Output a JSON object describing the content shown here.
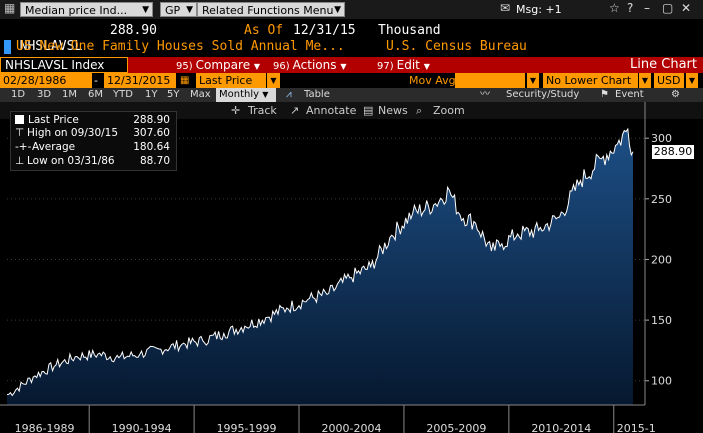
{
  "topbar": {
    "security_dropdown": "Median price Ind...",
    "menu_dropdown": "GP",
    "functions_dropdown": "Related Functions Menu",
    "msg": "Msg: +1"
  },
  "header": {
    "ticker": "NHSLAVSL",
    "last_value": "288.90",
    "as_of_label": "As Of",
    "as_of_date": "12/31/15",
    "units": "Thousand",
    "description": "US New One Family Houses Sold Annual Me...",
    "source": "U.S. Census Bureau"
  },
  "redbar": {
    "index_label": "NHSLAVSL Index",
    "compare": {
      "num": "95)",
      "label": "Compare"
    },
    "actions": {
      "num": "96)",
      "label": "Actions"
    },
    "edit": {
      "num": "97)",
      "label": "Edit"
    },
    "chart_type": "Line Chart"
  },
  "params": {
    "start_date": "02/28/1986",
    "end_date": "12/31/2015",
    "price_field": "Last Price",
    "mov_avg": "Mov Avg",
    "lower_chart": "No Lower Chart",
    "currency": "USD"
  },
  "periods": {
    "items": [
      "1D",
      "3D",
      "1M",
      "6M",
      "YTD",
      "1Y",
      "5Y",
      "Max"
    ],
    "frequency": "Monthly",
    "table": "Table",
    "security_study": "Security/Study",
    "event": "Event"
  },
  "toolbar": {
    "track": "Track",
    "annotate": "Annotate",
    "news": "News",
    "zoom": "Zoom"
  },
  "legend": {
    "last_price": {
      "label": "Last Price",
      "value": "288.90"
    },
    "high": {
      "label": "High on 09/30/15",
      "value": "307.60"
    },
    "average": {
      "label": "Average",
      "value": "180.64"
    },
    "low": {
      "label": "Low on 03/31/86",
      "value": "88.70"
    }
  },
  "price_tag": "288.90",
  "colors": {
    "fill": "#0d2a4d",
    "line": "#ffffff",
    "red_bar": "#b20000",
    "orange": "#ff9900"
  },
  "chart_data": {
    "type": "area",
    "x_start": "1986-02",
    "x_end": "2015-12",
    "frequency": "monthly",
    "x_tick_labels": [
      "1986-1989",
      "1990-1994",
      "1995-1999",
      "2000-2004",
      "2005-2009",
      "2010-2014",
      "2015-1"
    ],
    "y_ticks": [
      100,
      150,
      200,
      250,
      300
    ],
    "ylim": [
      80,
      315
    ],
    "anchors": [
      {
        "date": "1986-03",
        "value": 88.7
      },
      {
        "date": "1987-06",
        "value": 104
      },
      {
        "date": "1988-06",
        "value": 113
      },
      {
        "date": "1989-06",
        "value": 120
      },
      {
        "date": "1990-06",
        "value": 122
      },
      {
        "date": "1991-06",
        "value": 119
      },
      {
        "date": "1992-06",
        "value": 122
      },
      {
        "date": "1993-06",
        "value": 126
      },
      {
        "date": "1994-06",
        "value": 130
      },
      {
        "date": "1995-06",
        "value": 133
      },
      {
        "date": "1996-06",
        "value": 139
      },
      {
        "date": "1997-06",
        "value": 145
      },
      {
        "date": "1998-06",
        "value": 152
      },
      {
        "date": "1999-06",
        "value": 160
      },
      {
        "date": "2000-06",
        "value": 167
      },
      {
        "date": "2001-06",
        "value": 172
      },
      {
        "date": "2002-06",
        "value": 185
      },
      {
        "date": "2003-06",
        "value": 194
      },
      {
        "date": "2004-06",
        "value": 220
      },
      {
        "date": "2005-06",
        "value": 238
      },
      {
        "date": "2006-06",
        "value": 245
      },
      {
        "date": "2007-03",
        "value": 257
      },
      {
        "date": "2007-09",
        "value": 237
      },
      {
        "date": "2008-06",
        "value": 230
      },
      {
        "date": "2009-03",
        "value": 207
      },
      {
        "date": "2009-09",
        "value": 213
      },
      {
        "date": "2010-06",
        "value": 221
      },
      {
        "date": "2011-06",
        "value": 224
      },
      {
        "date": "2012-06",
        "value": 235
      },
      {
        "date": "2013-06",
        "value": 265
      },
      {
        "date": "2014-06",
        "value": 283
      },
      {
        "date": "2015-03",
        "value": 295
      },
      {
        "date": "2015-09",
        "value": 307.6
      },
      {
        "date": "2015-12",
        "value": 288.9
      }
    ]
  }
}
